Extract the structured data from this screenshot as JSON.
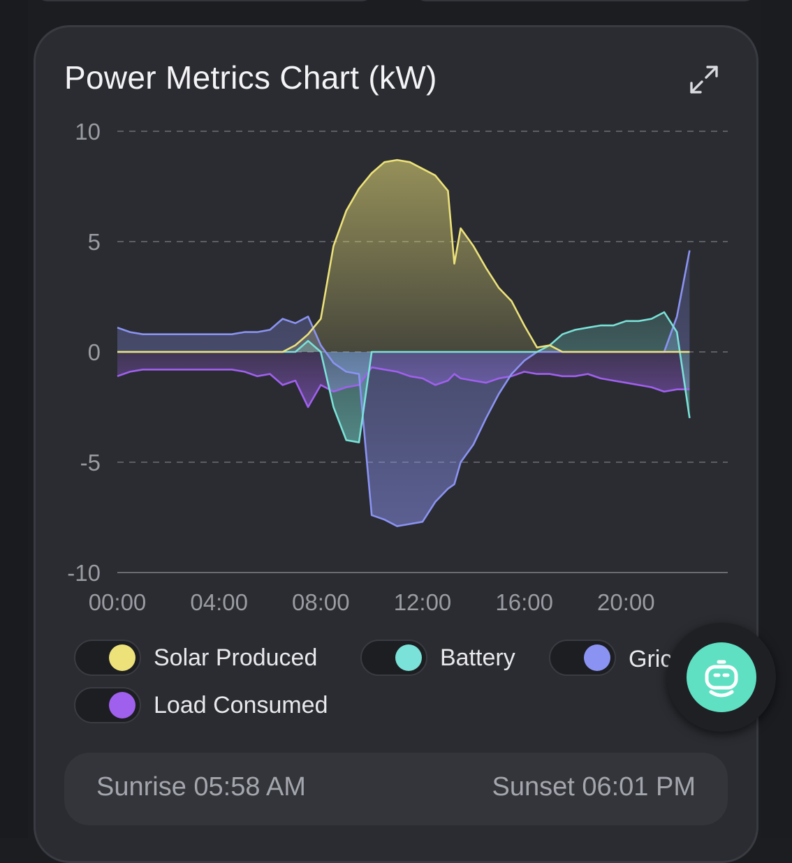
{
  "card": {
    "title": "Power Metrics Chart (kW)"
  },
  "icons": {
    "expand": "expand-icon",
    "assistant": "robot-assistant-icon"
  },
  "legend": [
    {
      "label": "Solar Produced",
      "color": "#ede27a"
    },
    {
      "label": "Battery",
      "color": "#7ae2d8"
    },
    {
      "label": "Grid",
      "visible_text": "Gric",
      "color": "#8b93f2"
    },
    {
      "label": "Load Consumed",
      "color": "#a060ee"
    }
  ],
  "sun": {
    "sunrise": "Sunrise 05:58 AM",
    "sunset": "Sunset 06:01 PM"
  },
  "chart_data": {
    "type": "area",
    "title": "Power Metrics Chart (kW)",
    "xlabel": "",
    "ylabel": "",
    "x_unit": "hours",
    "xlim": [
      0,
      24
    ],
    "ylim": [
      -10,
      10
    ],
    "y_ticks": [
      10,
      5,
      0,
      -5,
      -10
    ],
    "x_ticks": [
      "00:00",
      "04:00",
      "08:00",
      "12:00",
      "16:00",
      "20:00"
    ],
    "grid": true,
    "legend_position": "bottom",
    "x": [
      0,
      0.5,
      1,
      1.5,
      2,
      2.5,
      3,
      3.5,
      4,
      4.5,
      5,
      5.5,
      6,
      6.5,
      7,
      7.5,
      8,
      8.5,
      9,
      9.5,
      10,
      10.5,
      11,
      11.5,
      12,
      12.5,
      13,
      13.25,
      13.5,
      14,
      14.5,
      15,
      15.5,
      16,
      16.5,
      17,
      17.5,
      18,
      18.5,
      19,
      19.5,
      20,
      20.5,
      21,
      21.5,
      22,
      22.5
    ],
    "series": [
      {
        "name": "Solar Produced",
        "color": "#ede27a",
        "values": [
          0,
          0,
          0,
          0,
          0,
          0,
          0,
          0,
          0,
          0,
          0,
          0,
          0,
          0,
          0.3,
          0.8,
          1.5,
          4.8,
          6.4,
          7.4,
          8.1,
          8.6,
          8.7,
          8.6,
          8.3,
          8.0,
          7.3,
          4.0,
          5.6,
          4.8,
          3.8,
          2.9,
          2.3,
          1.2,
          0.2,
          0.3,
          0,
          0,
          0,
          0,
          0,
          0,
          0,
          0,
          0,
          0,
          0
        ]
      },
      {
        "name": "Battery",
        "color": "#7ae2d8",
        "values": [
          0,
          0,
          0,
          0,
          0,
          0,
          0,
          0,
          0,
          0,
          0,
          0,
          0,
          0,
          0,
          0.5,
          0,
          -2.5,
          -4.0,
          -4.1,
          0,
          0,
          0,
          0,
          0,
          0,
          0,
          0,
          0,
          0,
          0,
          0,
          0,
          0,
          0,
          0.3,
          0.8,
          1.0,
          1.1,
          1.2,
          1.2,
          1.4,
          1.4,
          1.5,
          1.8,
          0.9,
          -3.0
        ]
      },
      {
        "name": "Grid",
        "color": "#8b93f2",
        "values": [
          1.1,
          0.9,
          0.8,
          0.8,
          0.8,
          0.8,
          0.8,
          0.8,
          0.8,
          0.8,
          0.9,
          0.9,
          1.0,
          1.5,
          1.3,
          1.6,
          0.3,
          -0.5,
          -0.9,
          -1.0,
          -7.4,
          -7.6,
          -7.9,
          -7.8,
          -7.7,
          -6.8,
          -6.2,
          -6.0,
          -5.0,
          -4.2,
          -3.0,
          -1.9,
          -1.0,
          -0.4,
          0,
          0,
          0,
          0,
          0,
          0,
          0,
          0,
          0,
          0,
          0,
          1.6,
          4.6
        ]
      },
      {
        "name": "Load Consumed",
        "color": "#a060ee",
        "values": [
          -1.1,
          -0.9,
          -0.8,
          -0.8,
          -0.8,
          -0.8,
          -0.8,
          -0.8,
          -0.8,
          -0.8,
          -0.9,
          -1.1,
          -1.0,
          -1.5,
          -1.3,
          -2.5,
          -1.5,
          -1.8,
          -1.6,
          -1.5,
          -0.7,
          -0.8,
          -0.9,
          -1.1,
          -1.2,
          -1.5,
          -1.3,
          -1.0,
          -1.2,
          -1.3,
          -1.4,
          -1.2,
          -1.1,
          -0.9,
          -1.0,
          -1.0,
          -1.1,
          -1.1,
          -1.0,
          -1.2,
          -1.3,
          -1.4,
          -1.5,
          -1.6,
          -1.8,
          -1.7,
          -1.7
        ]
      }
    ]
  }
}
